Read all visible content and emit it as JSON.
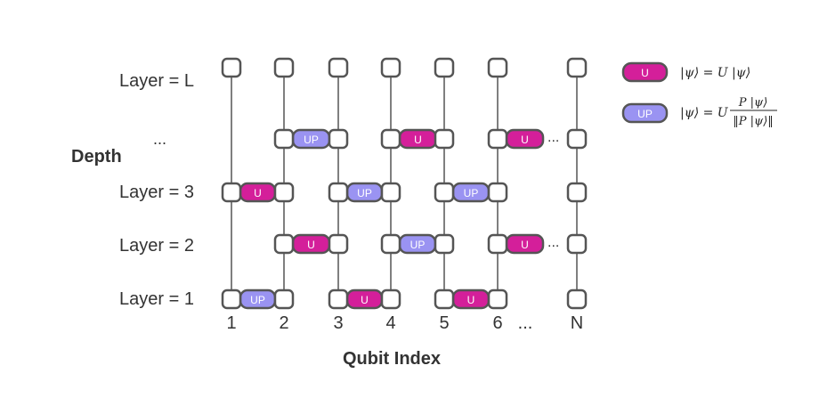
{
  "axis": {
    "y_title": "Depth",
    "x_title": "Qubit Index"
  },
  "layers": {
    "labels": [
      "Layer = L",
      "...",
      "Layer = 3",
      "Layer = 2",
      "Layer = 1"
    ]
  },
  "qubits": {
    "labels": [
      "1",
      "2",
      "3",
      "4",
      "5",
      "6",
      "...",
      "N"
    ]
  },
  "gates": {
    "u_label": "U",
    "up_label": "UP",
    "u_color": "#d41f9a",
    "up_color": "#9a93f2",
    "node_stroke": "#555555"
  },
  "ellipsis": "...",
  "legend": {
    "u_label": "U",
    "u_equation": "|ψ⟩ = U |ψ⟩",
    "up_label": "UP",
    "up_equation_lhs": "|ψ⟩ = U",
    "up_equation_num": "P |ψ⟩",
    "up_equation_den": "‖P |ψ⟩‖"
  }
}
